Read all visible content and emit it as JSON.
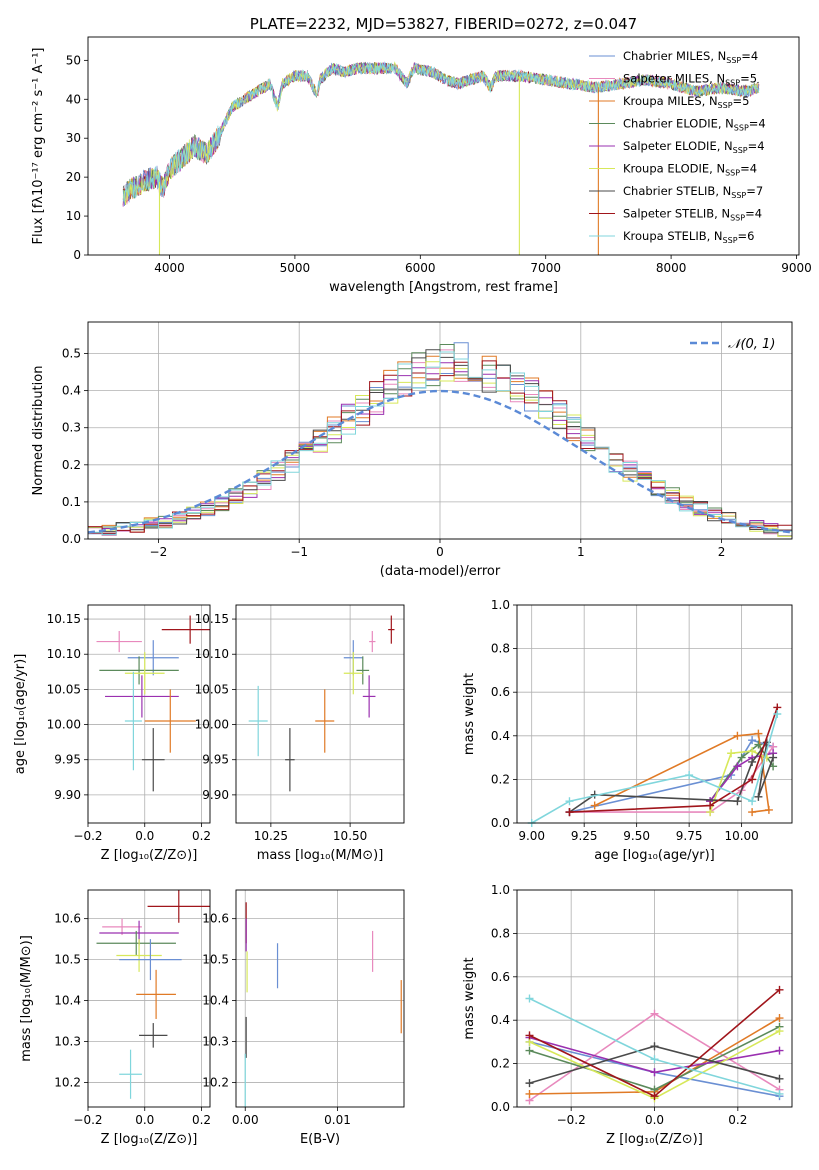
{
  "colors": {
    "chab_miles": "#6a8fd3",
    "salp_miles": "#e889bd",
    "krou_miles": "#e07a26",
    "chab_elodie": "#5b8a5b",
    "salp_elodie": "#9a30b0",
    "krou_elodie": "#d7e85a",
    "chab_stelib": "#4a4a4a",
    "salp_stelib": "#a0151b",
    "krou_stelib": "#80d6dc",
    "normal_curve": "#5b8ad6"
  },
  "chart_data": [
    {
      "id": "spectrum",
      "type": "line",
      "title": "PLATE=2232, MJD=53827, FIBERID=0272, z=0.047",
      "xlabel": "wavelength [Angstrom, rest frame]",
      "ylabel": "Flux [fλ10⁻¹⁷ erg cm⁻² s⁻¹ A⁻¹]",
      "xlim": [
        3350,
        9020
      ],
      "ylim": [
        0,
        56
      ],
      "xticks": [
        4000,
        5000,
        6000,
        7000,
        8000,
        9000
      ],
      "yticks": [
        0,
        10,
        20,
        30,
        40,
        50
      ],
      "grid": false,
      "legend_position": "top-right",
      "legend": [
        {
          "label": "Chabrier MILES, N",
          "sub": "SSP",
          "tail": "=4",
          "color_key": "chab_miles"
        },
        {
          "label": "Salpeter MILES, N",
          "sub": "SSP",
          "tail": "=5",
          "color_key": "salp_miles"
        },
        {
          "label": "Kroupa MILES, N",
          "sub": "SSP",
          "tail": "=5",
          "color_key": "krou_miles"
        },
        {
          "label": "Chabrier ELODIE, N",
          "sub": "SSP",
          "tail": "=4",
          "color_key": "chab_elodie"
        },
        {
          "label": "Salpeter ELODIE, N",
          "sub": "SSP",
          "tail": "=4",
          "color_key": "salp_elodie"
        },
        {
          "label": "Kroupa ELODIE, N",
          "sub": "SSP",
          "tail": "=4",
          "color_key": "krou_elodie"
        },
        {
          "label": "Chabrier STELIB, N",
          "sub": "SSP",
          "tail": "=7",
          "color_key": "chab_stelib"
        },
        {
          "label": "Salpeter STELIB, N",
          "sub": "SSP",
          "tail": "=4",
          "color_key": "salp_stelib"
        },
        {
          "label": "Kroupa STELIB, N",
          "sub": "SSP",
          "tail": "=6",
          "color_key": "krou_stelib"
        }
      ],
      "continuum": [
        [
          3630,
          15
        ],
        [
          3700,
          17
        ],
        [
          3800,
          19
        ],
        [
          3900,
          20
        ],
        [
          3950,
          17
        ],
        [
          4000,
          22
        ],
        [
          4100,
          25
        ],
        [
          4200,
          28
        ],
        [
          4300,
          26
        ],
        [
          4400,
          31
        ],
        [
          4500,
          38
        ],
        [
          4600,
          40
        ],
        [
          4700,
          42
        ],
        [
          4800,
          44
        ],
        [
          4862,
          38
        ],
        [
          4900,
          44
        ],
        [
          5000,
          46
        ],
        [
          5100,
          46
        ],
        [
          5176,
          41
        ],
        [
          5200,
          45
        ],
        [
          5300,
          48
        ],
        [
          5400,
          47
        ],
        [
          5500,
          48
        ],
        [
          5600,
          48
        ],
        [
          5700,
          48
        ],
        [
          5800,
          48
        ],
        [
          5893,
          44
        ],
        [
          5950,
          48
        ],
        [
          6100,
          47
        ],
        [
          6200,
          45
        ],
        [
          6300,
          44
        ],
        [
          6400,
          45
        ],
        [
          6500,
          46
        ],
        [
          6563,
          43
        ],
        [
          6600,
          46
        ],
        [
          6800,
          46
        ],
        [
          7000,
          45
        ],
        [
          7200,
          44
        ],
        [
          7400,
          43
        ],
        [
          7600,
          44
        ],
        [
          7800,
          45
        ],
        [
          8000,
          44
        ],
        [
          8200,
          42
        ],
        [
          8400,
          43
        ],
        [
          8600,
          42
        ],
        [
          8700,
          43
        ]
      ],
      "dropouts": [
        {
          "x": 3920,
          "color_key": "krou_elodie"
        },
        {
          "x": 6790,
          "color_key": "krou_elodie"
        },
        {
          "x": 7420,
          "color_key": "krou_miles"
        }
      ]
    },
    {
      "id": "residuals",
      "type": "histogram",
      "xlabel": "(data-model)/error",
      "ylabel": "Normed distribution",
      "xlim": [
        -2.5,
        2.5
      ],
      "ylim": [
        0,
        0.585
      ],
      "xticks": [
        -2,
        -1,
        0,
        1,
        2
      ],
      "yticks": [
        0.0,
        0.1,
        0.2,
        0.3,
        0.4,
        0.5
      ],
      "grid": true,
      "legend_position": "top-right",
      "curve_label": "𝒩(0, 1)",
      "bin_width": 0.1,
      "bin_start": -2.5,
      "base_profile": [
        0.022,
        0.025,
        0.03,
        0.034,
        0.04,
        0.046,
        0.056,
        0.068,
        0.08,
        0.098,
        0.116,
        0.136,
        0.158,
        0.182,
        0.208,
        0.236,
        0.264,
        0.294,
        0.322,
        0.35,
        0.38,
        0.408,
        0.432,
        0.452,
        0.468,
        0.478,
        0.476,
        0.468,
        0.45,
        0.432,
        0.41,
        0.386,
        0.36,
        0.33,
        0.3,
        0.272,
        0.24,
        0.212,
        0.186,
        0.16,
        0.138,
        0.118,
        0.098,
        0.082,
        0.068,
        0.054,
        0.044,
        0.036,
        0.028,
        0.022
      ]
    },
    {
      "id": "age_vs_Z",
      "type": "errorbar",
      "xlabel": "Z [log₁₀(Z/Z⊙)]",
      "ylabel": "age  [log₁₀(age/yr)]",
      "xlim": [
        -0.2,
        0.23
      ],
      "ylim": [
        9.86,
        10.17
      ],
      "xticks": [
        -0.2,
        0.0,
        0.2
      ],
      "xtick_labels": [
        "−0.2",
        "0.0",
        "0.2"
      ],
      "yticks": [
        9.9,
        9.95,
        10.0,
        10.05,
        10.1,
        10.15
      ],
      "grid": true,
      "points": [
        {
          "key": "salp_miles",
          "x": -0.09,
          "xerr": 0.08,
          "y": 10.118,
          "yerr": 0.015
        },
        {
          "key": "salp_stelib",
          "x": 0.16,
          "xerr": 0.1,
          "y": 10.135,
          "yerr": 0.02
        },
        {
          "key": "chab_miles",
          "x": 0.03,
          "xerr": 0.09,
          "y": 10.095,
          "yerr": 0.025
        },
        {
          "key": "chab_elodie",
          "x": -0.02,
          "xerr": 0.14,
          "y": 10.077,
          "yerr": 0.02
        },
        {
          "key": "krou_elodie",
          "x": 0.0,
          "xerr": 0.07,
          "y": 10.073,
          "yerr": 0.03
        },
        {
          "key": "salp_elodie",
          "x": -0.01,
          "xerr": 0.13,
          "y": 10.04,
          "yerr": 0.03
        },
        {
          "key": "krou_miles",
          "x": 0.09,
          "xerr": 0.09,
          "y": 10.005,
          "yerr": 0.045
        },
        {
          "key": "krou_stelib",
          "x": -0.04,
          "xerr": 0.03,
          "y": 10.005,
          "yerr": 0.07
        },
        {
          "key": "chab_stelib",
          "x": 0.03,
          "xerr": 0.04,
          "y": 9.95,
          "yerr": 0.045
        }
      ]
    },
    {
      "id": "age_vs_mass",
      "type": "errorbar",
      "xlabel": "mass [log₁₀(M/M⊙)]",
      "ylabel": "",
      "xlim": [
        10.14,
        10.67
      ],
      "ylim": [
        9.86,
        10.17
      ],
      "xticks": [
        10.25,
        10.5
      ],
      "xtick_labels": [
        "10.25",
        "10.50"
      ],
      "yticks": [
        9.9,
        9.95,
        10.0,
        10.05,
        10.1,
        10.15
      ],
      "grid": true,
      "points": [
        {
          "key": "salp_miles",
          "x": 10.57,
          "xerr": 0.01,
          "y": 10.118,
          "yerr": 0.015
        },
        {
          "key": "salp_stelib",
          "x": 10.63,
          "xerr": 0.01,
          "y": 10.135,
          "yerr": 0.02
        },
        {
          "key": "chab_miles",
          "x": 10.51,
          "xerr": 0.03,
          "y": 10.095,
          "yerr": 0.025
        },
        {
          "key": "chab_elodie",
          "x": 10.54,
          "xerr": 0.02,
          "y": 10.077,
          "yerr": 0.02
        },
        {
          "key": "krou_elodie",
          "x": 10.51,
          "xerr": 0.03,
          "y": 10.073,
          "yerr": 0.03
        },
        {
          "key": "salp_elodie",
          "x": 10.56,
          "xerr": 0.02,
          "y": 10.04,
          "yerr": 0.03
        },
        {
          "key": "krou_miles",
          "x": 10.42,
          "xerr": 0.03,
          "y": 10.005,
          "yerr": 0.045
        },
        {
          "key": "krou_stelib",
          "x": 10.21,
          "xerr": 0.03,
          "y": 10.005,
          "yerr": 0.05
        },
        {
          "key": "chab_stelib",
          "x": 10.31,
          "xerr": 0.015,
          "y": 9.95,
          "yerr": 0.045
        }
      ]
    },
    {
      "id": "weight_vs_age",
      "type": "line",
      "xlabel": "age  [log₁₀(age/yr)]",
      "ylabel": "mass weight",
      "xlim": [
        8.93,
        10.24
      ],
      "ylim": [
        0,
        1.0
      ],
      "xticks": [
        9.0,
        9.25,
        9.5,
        9.75,
        10.0
      ],
      "xtick_labels": [
        "9.00",
        "9.25",
        "9.50",
        "9.75",
        "10.00"
      ],
      "yticks": [
        0.0,
        0.2,
        0.4,
        0.6,
        0.8,
        1.0
      ],
      "grid": true,
      "series": [
        {
          "key": "chab_miles",
          "x": [
            9.18,
            9.95,
            10.05,
            10.15
          ],
          "y": [
            0.05,
            0.22,
            0.38,
            0.35
          ]
        },
        {
          "key": "salp_miles",
          "x": [
            9.18,
            9.85,
            10.0,
            10.15
          ],
          "y": [
            0.05,
            0.05,
            0.15,
            0.35
          ]
        },
        {
          "key": "krou_miles",
          "x": [
            9.3,
            9.98,
            10.08,
            10.13,
            10.05
          ],
          "y": [
            0.08,
            0.4,
            0.41,
            0.06,
            0.05
          ]
        },
        {
          "key": "chab_elodie",
          "x": [
            9.85,
            10.0,
            10.08,
            10.15
          ],
          "y": [
            0.1,
            0.3,
            0.36,
            0.26
          ]
        },
        {
          "key": "salp_elodie",
          "x": [
            9.85,
            9.98,
            10.05,
            10.15
          ],
          "y": [
            0.1,
            0.26,
            0.3,
            0.32
          ]
        },
        {
          "key": "krou_elodie",
          "x": [
            9.85,
            9.95,
            10.05,
            10.12
          ],
          "y": [
            0.05,
            0.32,
            0.33,
            0.3
          ]
        },
        {
          "key": "chab_stelib",
          "x": [
            9.18,
            9.3,
            9.98,
            10.05,
            10.12,
            10.08,
            10.15
          ],
          "y": [
            0.05,
            0.13,
            0.1,
            0.28,
            0.37,
            0.12,
            0.3
          ]
        },
        {
          "key": "salp_stelib",
          "x": [
            9.18,
            9.85,
            10.05,
            10.17
          ],
          "y": [
            0.05,
            0.08,
            0.2,
            0.53
          ]
        },
        {
          "key": "krou_stelib",
          "x": [
            9.0,
            9.18,
            9.75,
            10.05,
            10.17
          ],
          "y": [
            0.0,
            0.1,
            0.22,
            0.1,
            0.5
          ]
        }
      ]
    },
    {
      "id": "mass_vs_Z",
      "type": "errorbar",
      "xlabel": "Z [log₁₀(Z/Z⊙)]",
      "ylabel": "mass [log₁₀(M/M⊙)]",
      "xlim": [
        -0.2,
        0.23
      ],
      "ylim": [
        10.14,
        10.67
      ],
      "xticks": [
        -0.2,
        0.0,
        0.2
      ],
      "xtick_labels": [
        "−0.2",
        "0.0",
        "0.2"
      ],
      "yticks": [
        10.2,
        10.3,
        10.4,
        10.5,
        10.6
      ],
      "grid": true,
      "points": [
        {
          "key": "salp_stelib",
          "x": 0.12,
          "xerr": 0.11,
          "y": 10.63,
          "yerr": 0.04
        },
        {
          "key": "salp_miles",
          "x": -0.08,
          "xerr": 0.07,
          "y": 10.58,
          "yerr": 0.02
        },
        {
          "key": "salp_elodie",
          "x": -0.02,
          "xerr": 0.14,
          "y": 10.565,
          "yerr": 0.03
        },
        {
          "key": "chab_elodie",
          "x": -0.03,
          "xerr": 0.14,
          "y": 10.54,
          "yerr": 0.03
        },
        {
          "key": "krou_elodie",
          "x": -0.02,
          "xerr": 0.08,
          "y": 10.51,
          "yerr": 0.04
        },
        {
          "key": "chab_miles",
          "x": 0.02,
          "xerr": 0.11,
          "y": 10.5,
          "yerr": 0.05
        },
        {
          "key": "krou_miles",
          "x": 0.04,
          "xerr": 0.07,
          "y": 10.415,
          "yerr": 0.06
        },
        {
          "key": "chab_stelib",
          "x": 0.03,
          "xerr": 0.05,
          "y": 10.315,
          "yerr": 0.03
        },
        {
          "key": "krou_stelib",
          "x": -0.05,
          "xerr": 0.04,
          "y": 10.22,
          "yerr": 0.06
        }
      ]
    },
    {
      "id": "mass_vs_ebv",
      "type": "errorbar",
      "xlabel": "E(B-V)",
      "ylabel": "",
      "xlim": [
        -0.001,
        0.0172
      ],
      "ylim": [
        10.14,
        10.67
      ],
      "xticks": [
        0.0,
        0.01
      ],
      "xtick_labels": [
        "0.00",
        "0.01"
      ],
      "yticks": [
        10.2,
        10.3,
        10.4,
        10.5,
        10.6
      ],
      "grid": true,
      "points": [
        {
          "key": "salp_stelib",
          "x": 0.0001,
          "xerr": 0,
          "y": 10.59,
          "yerr": 0.05
        },
        {
          "key": "salp_elodie",
          "x": 0.0001,
          "xerr": 0,
          "y": 10.56,
          "yerr": 0.04
        },
        {
          "key": "krou_elodie",
          "x": 0.0002,
          "xerr": 0,
          "y": 10.47,
          "yerr": 0.05
        },
        {
          "key": "chab_miles",
          "x": 0.0035,
          "xerr": 0,
          "y": 10.485,
          "yerr": 0.055
        },
        {
          "key": "salp_miles",
          "x": 0.0138,
          "xerr": 0,
          "y": 10.52,
          "yerr": 0.05
        },
        {
          "key": "krou_miles",
          "x": 0.0169,
          "xerr": 0,
          "y": 10.385,
          "yerr": 0.065
        },
        {
          "key": "chab_stelib",
          "x": 0.0001,
          "xerr": 0,
          "y": 10.31,
          "yerr": 0.05
        },
        {
          "key": "krou_stelib",
          "x": 0.0,
          "xerr": 0,
          "y": 10.2,
          "yerr": 0.07
        }
      ]
    },
    {
      "id": "weight_vs_Z",
      "type": "line",
      "xlabel": "Z [log₁₀(Z/Z⊙)]",
      "ylabel": "mass weight",
      "xlim": [
        -0.33,
        0.33
      ],
      "ylim": [
        0,
        1.0
      ],
      "xticks": [
        -0.2,
        0.0,
        0.2
      ],
      "xtick_labels": [
        "−0.2",
        "0.0",
        "0.2"
      ],
      "yticks": [
        0.0,
        0.2,
        0.4,
        0.6,
        0.8,
        1.0
      ],
      "grid": true,
      "series": [
        {
          "key": "chab_miles",
          "x": [
            -0.3,
            0.0,
            0.3
          ],
          "y": [
            0.3,
            0.16,
            0.05
          ]
        },
        {
          "key": "salp_miles",
          "x": [
            -0.3,
            0.0,
            0.3
          ],
          "y": [
            0.03,
            0.43,
            0.08
          ]
        },
        {
          "key": "krou_miles",
          "x": [
            -0.3,
            0.0,
            0.3
          ],
          "y": [
            0.06,
            0.07,
            0.41
          ]
        },
        {
          "key": "chab_elodie",
          "x": [
            -0.3,
            0.0,
            0.3
          ],
          "y": [
            0.26,
            0.08,
            0.37
          ]
        },
        {
          "key": "salp_elodie",
          "x": [
            -0.3,
            0.0,
            0.3
          ],
          "y": [
            0.32,
            0.16,
            0.26
          ]
        },
        {
          "key": "krou_elodie",
          "x": [
            -0.3,
            0.0,
            0.3
          ],
          "y": [
            0.3,
            0.04,
            0.35
          ]
        },
        {
          "key": "chab_stelib",
          "x": [
            -0.3,
            0.0,
            0.3
          ],
          "y": [
            0.11,
            0.28,
            0.13
          ]
        },
        {
          "key": "salp_stelib",
          "x": [
            -0.3,
            0.0,
            0.3
          ],
          "y": [
            0.33,
            0.05,
            0.54
          ]
        },
        {
          "key": "krou_stelib",
          "x": [
            -0.3,
            0.0,
            0.3
          ],
          "y": [
            0.5,
            0.22,
            0.06
          ]
        }
      ]
    }
  ]
}
